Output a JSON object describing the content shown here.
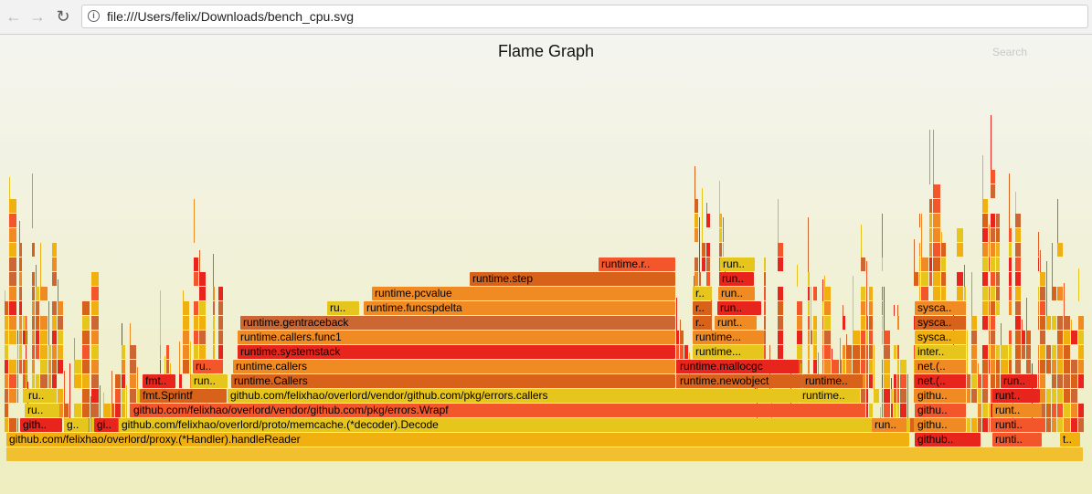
{
  "browser": {
    "url": "file:///Users/felix/Downloads/bench_cpu.svg",
    "back_icon": "arrow-left-icon",
    "forward_icon": "arrow-right-icon",
    "reload_icon": "reload-icon",
    "info_icon": "info-icon"
  },
  "flamegraph": {
    "title": "Flame Graph",
    "search_label": "Search",
    "colors": {
      "yellow": "#e6c51c",
      "gold": "#f0b010",
      "orange": "#f08a23",
      "dark_orange": "#d8621a",
      "red_orange": "#f2562a",
      "red": "#e8251c",
      "brown": "#cc6633",
      "root": "#f0c030"
    },
    "frames": [
      {
        "label": "github.com/felixhao/overlord/proxy.(*Handler).handleReader"
      },
      {
        "label": "gith.."
      },
      {
        "label": "g.."
      },
      {
        "label": "gi.."
      },
      {
        "label": "github.com/felixhao/overlord/proto/memcache.(*decoder).Decode"
      },
      {
        "label": "ru.."
      },
      {
        "label": "github.com/felixhao/overlord/vendor/github.com/pkg/errors.Wrapf"
      },
      {
        "label": "ru.."
      },
      {
        "label": "fmt.Sprintf"
      },
      {
        "label": "github.com/felixhao/overlord/vendor/github.com/pkg/errors.callers"
      },
      {
        "label": "fmt.."
      },
      {
        "label": "run.."
      },
      {
        "label": "runtime.Callers"
      },
      {
        "label": "ru.."
      },
      {
        "label": "runtime.callers"
      },
      {
        "label": "runtime.systemstack"
      },
      {
        "label": "runtime.callers.func1"
      },
      {
        "label": "runtime.gentraceback"
      },
      {
        "label": "ru.."
      },
      {
        "label": "runtime.funcspdelta"
      },
      {
        "label": "runtime.pcvalue"
      },
      {
        "label": "runtime.step"
      },
      {
        "label": "runtime.r.."
      },
      {
        "label": "runtime.mallocgc"
      },
      {
        "label": "runtime.newobject"
      },
      {
        "label": "runtime..."
      },
      {
        "label": "runtime.."
      },
      {
        "label": "runtime.."
      },
      {
        "label": "runtime..."
      },
      {
        "label": "r.."
      },
      {
        "label": "runt.."
      },
      {
        "label": "r.."
      },
      {
        "label": "run.."
      },
      {
        "label": "r.."
      },
      {
        "label": "run.."
      },
      {
        "label": "run.."
      },
      {
        "label": "run.."
      },
      {
        "label": "run.."
      },
      {
        "label": "githu.."
      },
      {
        "label": "githu.."
      },
      {
        "label": "githu.."
      },
      {
        "label": "github.."
      },
      {
        "label": "net.(.."
      },
      {
        "label": "net.(.."
      },
      {
        "label": "inter.."
      },
      {
        "label": "sysca.."
      },
      {
        "label": "sysca.."
      },
      {
        "label": "sysca.."
      },
      {
        "label": "runti.."
      },
      {
        "label": "runti.."
      },
      {
        "label": "runt.."
      },
      {
        "label": "runt.."
      },
      {
        "label": "run.."
      },
      {
        "label": "t.."
      }
    ]
  }
}
